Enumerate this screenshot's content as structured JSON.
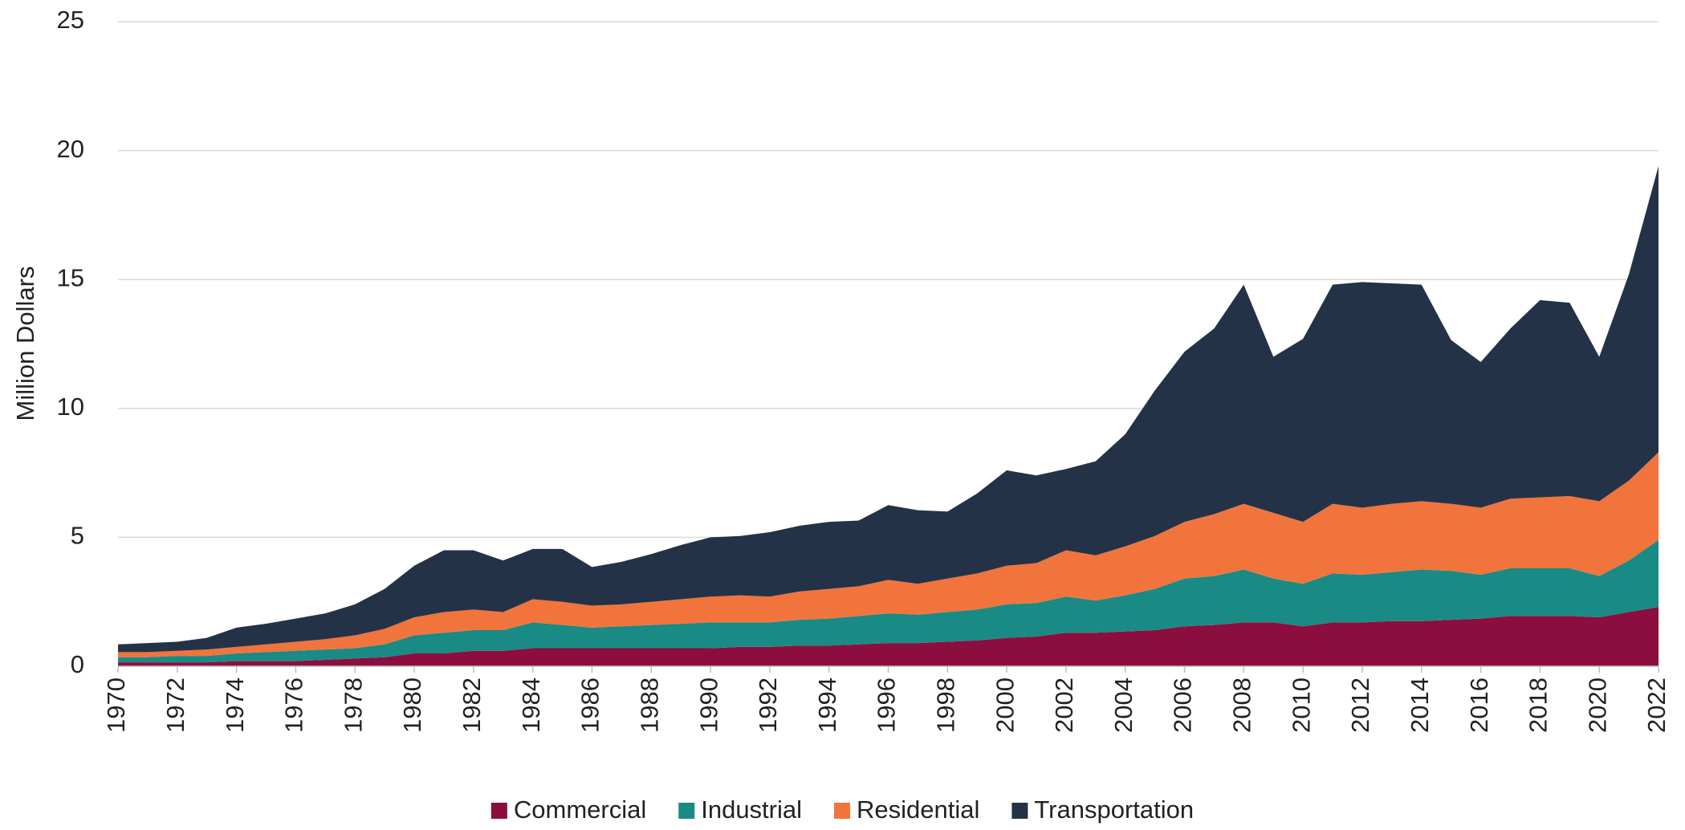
{
  "chart_data": {
    "type": "stacked_area",
    "y_label": "Million Dollars",
    "x": [
      1970,
      1971,
      1972,
      1973,
      1974,
      1975,
      1976,
      1977,
      1978,
      1979,
      1980,
      1981,
      1982,
      1983,
      1984,
      1985,
      1986,
      1987,
      1988,
      1989,
      1990,
      1991,
      1992,
      1993,
      1994,
      1995,
      1996,
      1997,
      1998,
      1999,
      2000,
      2001,
      2002,
      2003,
      2004,
      2005,
      2006,
      2007,
      2008,
      2009,
      2010,
      2011,
      2012,
      2013,
      2014,
      2015,
      2016,
      2017,
      2018,
      2019,
      2020,
      2021,
      2022
    ],
    "xlim": [
      1970,
      2022
    ],
    "xticks": [
      1970,
      1972,
      1974,
      1976,
      1978,
      1980,
      1982,
      1984,
      1986,
      1988,
      1990,
      1992,
      1994,
      1996,
      1998,
      2000,
      2002,
      2004,
      2006,
      2008,
      2010,
      2012,
      2014,
      2016,
      2018,
      2020,
      2022
    ],
    "ylim": [
      0,
      25
    ],
    "yticks": [
      0,
      5,
      10,
      15,
      20,
      25
    ],
    "grid": true,
    "legend": "bottom",
    "series": [
      {
        "name": "Commercial",
        "color": "#8b0e3f",
        "values": [
          0.15,
          0.15,
          0.15,
          0.15,
          0.2,
          0.2,
          0.2,
          0.25,
          0.3,
          0.35,
          0.5,
          0.5,
          0.6,
          0.6,
          0.7,
          0.7,
          0.7,
          0.7,
          0.7,
          0.7,
          0.7,
          0.75,
          0.75,
          0.8,
          0.8,
          0.85,
          0.9,
          0.9,
          0.95,
          1.0,
          1.1,
          1.15,
          1.3,
          1.3,
          1.35,
          1.4,
          1.55,
          1.6,
          1.7,
          1.7,
          1.55,
          1.7,
          1.7,
          1.75,
          1.75,
          1.8,
          1.85,
          1.95,
          1.95,
          1.95,
          1.9,
          2.1,
          2.3
        ]
      },
      {
        "name": "Industrial",
        "color": "#1a8a85",
        "values": [
          0.2,
          0.2,
          0.25,
          0.25,
          0.3,
          0.35,
          0.4,
          0.4,
          0.4,
          0.5,
          0.7,
          0.8,
          0.8,
          0.8,
          1.0,
          0.9,
          0.8,
          0.85,
          0.9,
          0.95,
          1.0,
          0.95,
          0.95,
          1.0,
          1.05,
          1.1,
          1.15,
          1.1,
          1.15,
          1.2,
          1.3,
          1.3,
          1.4,
          1.25,
          1.4,
          1.6,
          1.85,
          1.9,
          2.05,
          1.7,
          1.65,
          1.9,
          1.85,
          1.9,
          2.0,
          1.9,
          1.7,
          1.85,
          1.85,
          1.85,
          1.6,
          2.0,
          2.6
        ]
      },
      {
        "name": "Residential",
        "color": "#f0743c",
        "values": [
          0.2,
          0.2,
          0.2,
          0.25,
          0.25,
          0.3,
          0.35,
          0.4,
          0.5,
          0.6,
          0.7,
          0.8,
          0.8,
          0.7,
          0.9,
          0.9,
          0.85,
          0.85,
          0.9,
          0.95,
          1.0,
          1.05,
          1.0,
          1.1,
          1.15,
          1.15,
          1.3,
          1.2,
          1.3,
          1.4,
          1.5,
          1.55,
          1.8,
          1.75,
          1.9,
          2.05,
          2.2,
          2.4,
          2.55,
          2.55,
          2.4,
          2.7,
          2.6,
          2.65,
          2.65,
          2.6,
          2.6,
          2.7,
          2.75,
          2.8,
          2.9,
          3.1,
          3.4
        ]
      },
      {
        "name": "Transportation",
        "color": "#243247",
        "values": [
          0.3,
          0.35,
          0.35,
          0.45,
          0.75,
          0.8,
          0.9,
          1.0,
          1.2,
          1.55,
          2.0,
          2.4,
          2.3,
          2.0,
          1.95,
          2.05,
          1.5,
          1.65,
          1.85,
          2.1,
          2.3,
          2.3,
          2.5,
          2.55,
          2.6,
          2.55,
          2.9,
          2.85,
          2.6,
          3.1,
          3.7,
          3.4,
          3.15,
          3.65,
          4.35,
          5.65,
          6.6,
          7.2,
          8.5,
          6.05,
          7.1,
          8.5,
          8.75,
          8.55,
          8.4,
          6.35,
          5.65,
          6.6,
          7.65,
          7.5,
          5.6,
          8.0,
          11.1
        ]
      }
    ]
  }
}
